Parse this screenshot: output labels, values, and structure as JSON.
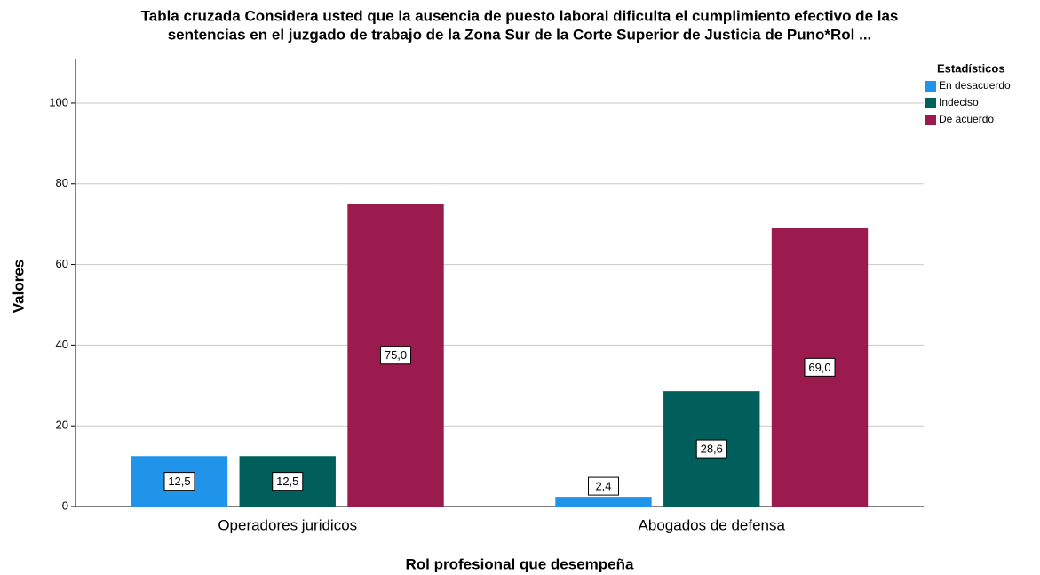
{
  "chart_data": {
    "type": "bar",
    "title": [
      "Tabla cruzada Considera usted que la ausencia de puesto laboral dificulta el cumplimiento efectivo de las",
      "sentencias en el juzgado de trabajo de la Zona Sur de la Corte Superior de Justicia de Puno*Rol ..."
    ],
    "x_label": "Rol profesional que desempeña",
    "y_label": "Valores",
    "legend_title": "Estadísticos",
    "legend": "top-right",
    "categories": [
      "Operadores juridicos",
      "Abogados de defensa"
    ],
    "series": [
      {
        "name": "En desacuerdo",
        "color": "#1f94e8",
        "values": [
          12.5,
          2.4
        ],
        "value_labels": [
          "12,5",
          "2,4"
        ]
      },
      {
        "name": "Indeciso",
        "color": "#005f5a",
        "values": [
          12.5,
          28.6
        ],
        "value_labels": [
          "12,5",
          "28,6"
        ]
      },
      {
        "name": "De acuerdo",
        "color": "#9b1b4f",
        "values": [
          75,
          69
        ],
        "value_labels": [
          "75,0",
          "69,0"
        ]
      }
    ],
    "ylim": [
      0,
      111
    ],
    "yticks": [
      0,
      20,
      40,
      60,
      80,
      100
    ],
    "grid": true
  }
}
